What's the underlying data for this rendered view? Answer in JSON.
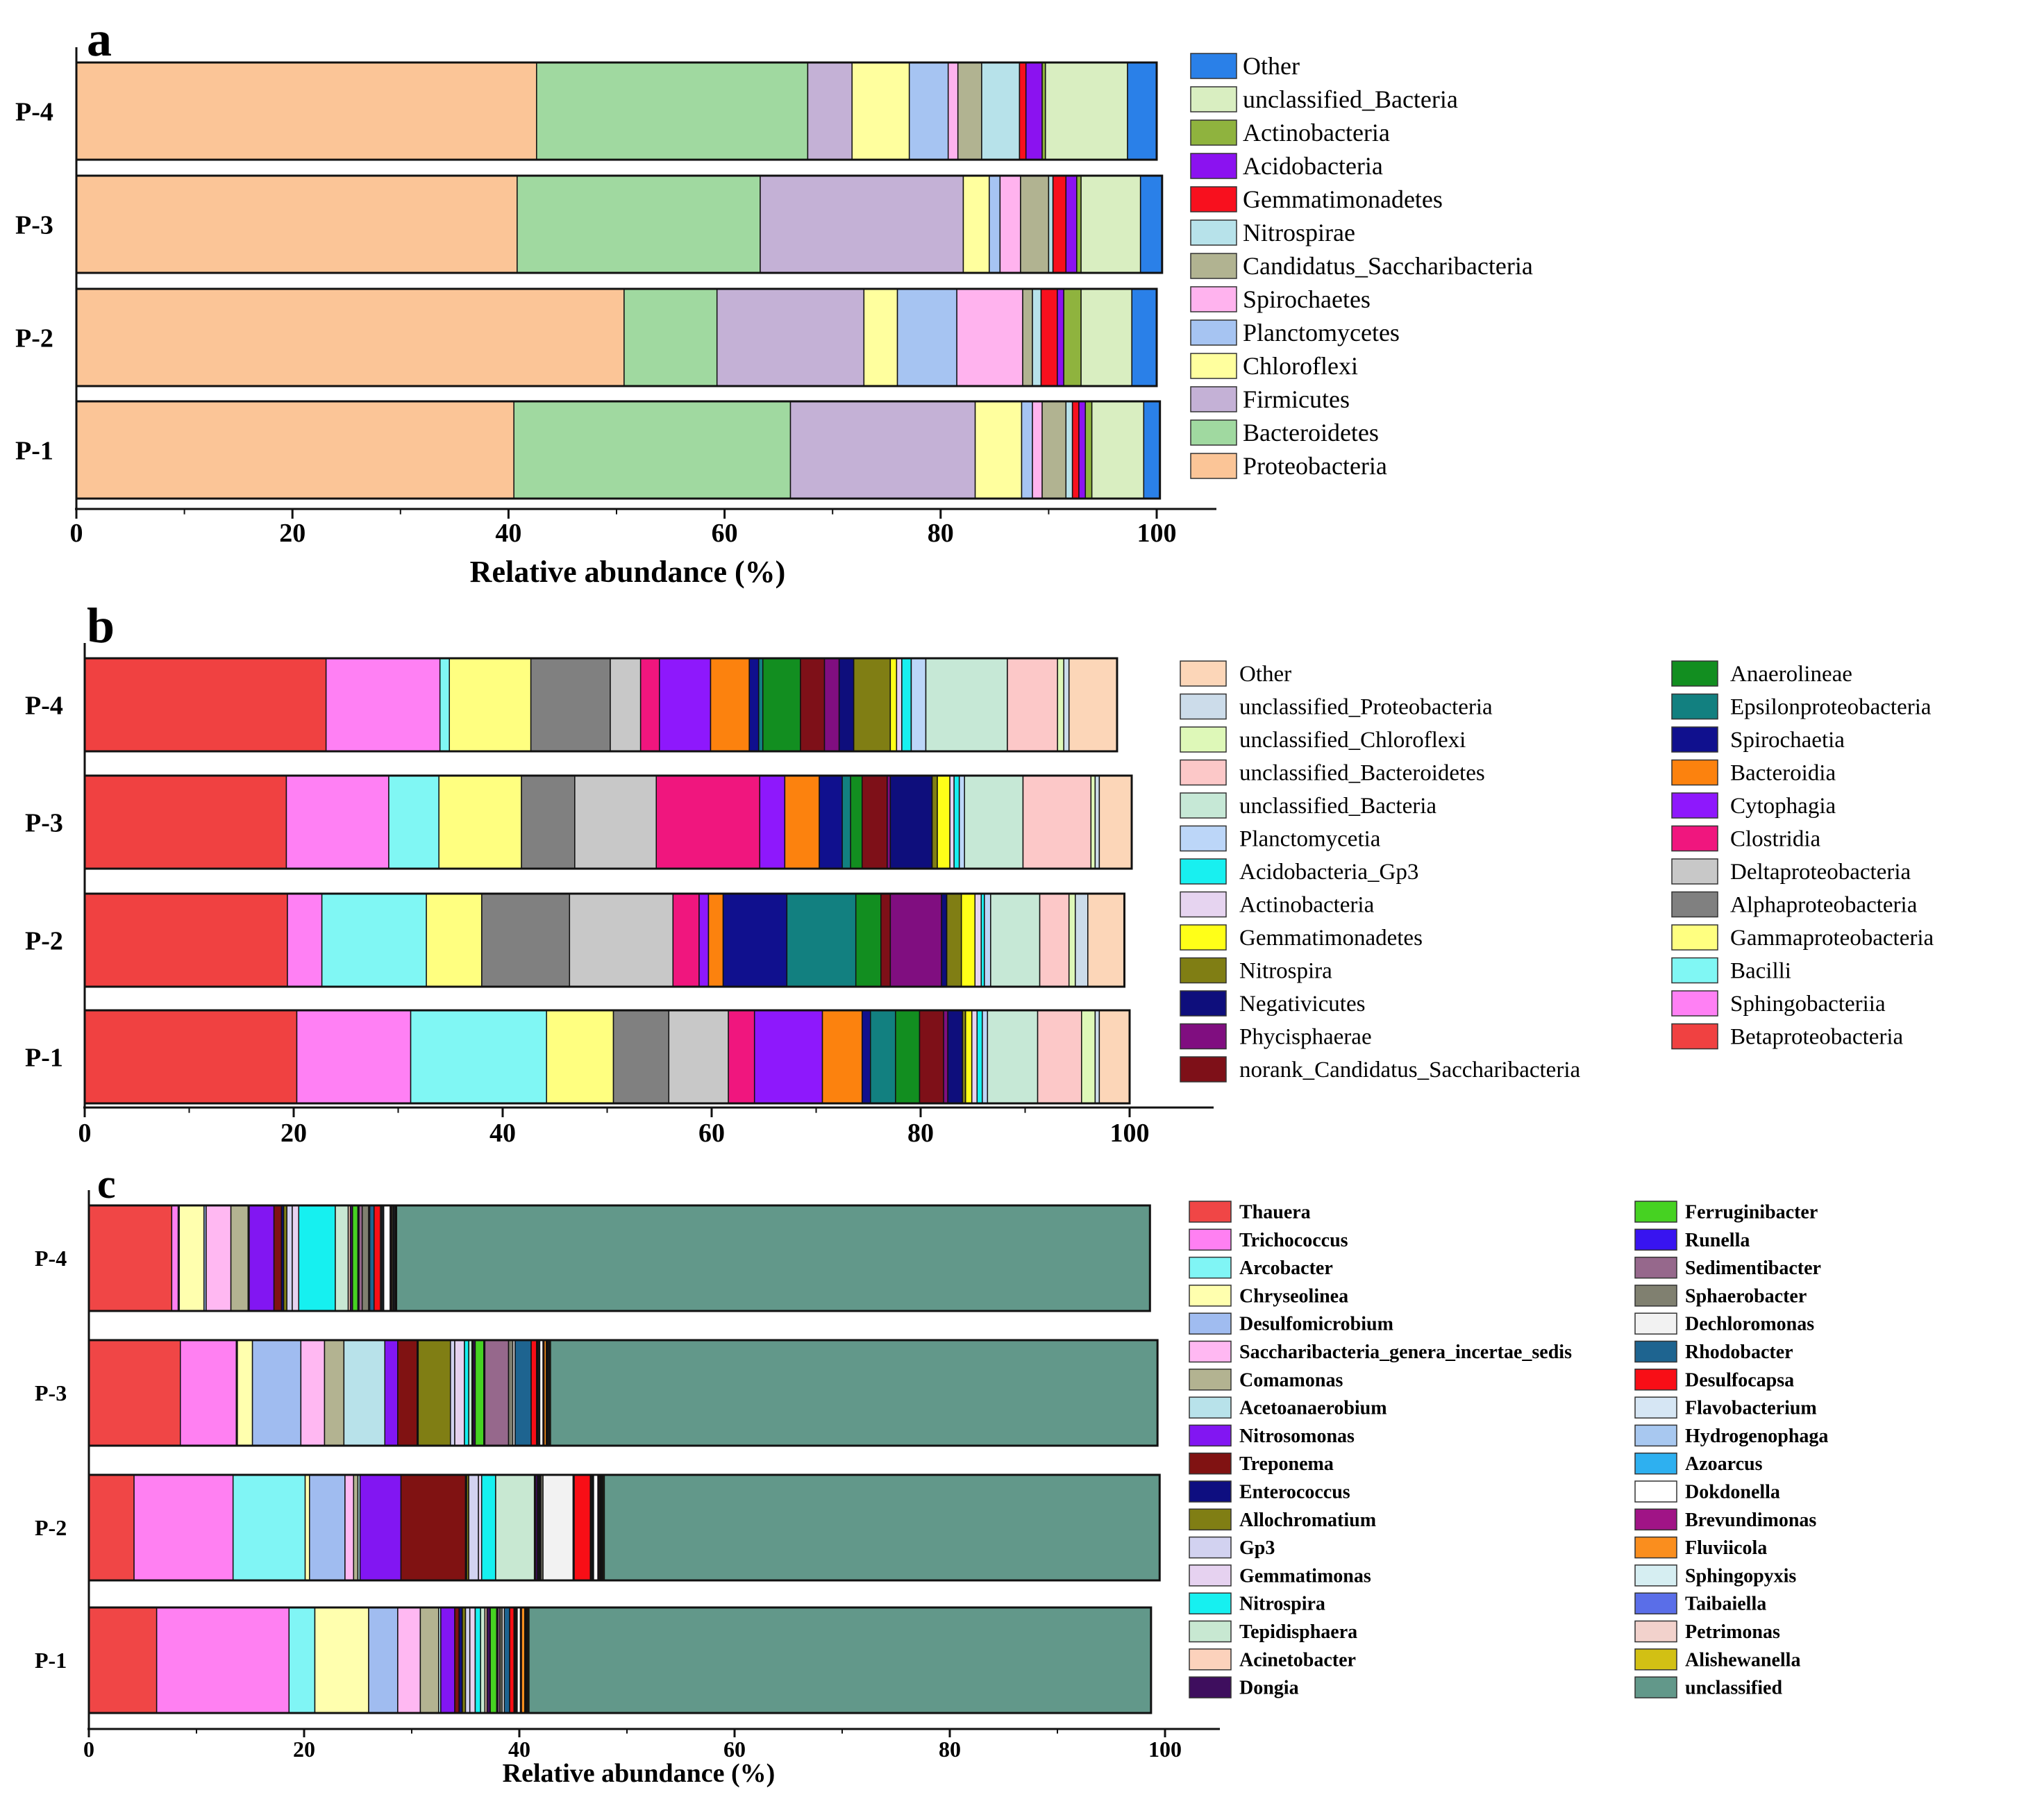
{
  "chart_data": [
    {
      "panel": "a",
      "type": "stacked-horizontal-bar",
      "panel_label": "a",
      "xlabel": "Relative abundance (%)",
      "xlim": [
        0,
        100
      ],
      "xticks": [
        "0",
        "20",
        "40",
        "60",
        "80",
        "100"
      ],
      "categories": [
        "P-4",
        "P-3",
        "P-2",
        "P-1"
      ],
      "series": [
        {
          "name": "Proteobacteria",
          "color": "#FBC597",
          "values": [
            42.6,
            40.8,
            50.7,
            40.5
          ]
        },
        {
          "name": "Bacteroidetes",
          "color": "#A0D9A0",
          "values": [
            25.1,
            22.5,
            8.6,
            25.6
          ]
        },
        {
          "name": "Firmicutes",
          "color": "#C4B1D6",
          "values": [
            4.1,
            18.8,
            13.6,
            17.1
          ]
        },
        {
          "name": "Chloroflexi",
          "color": "#FFFF9E",
          "values": [
            5.3,
            2.4,
            3.1,
            4.3
          ]
        },
        {
          "name": "Planctomycetes",
          "color": "#A6C4F2",
          "values": [
            3.6,
            1.0,
            5.5,
            1.0
          ]
        },
        {
          "name": "Spirochaetes",
          "color": "#FFB3EE",
          "values": [
            0.9,
            1.9,
            6.1,
            0.9
          ]
        },
        {
          "name": "Candidatus_Saccharibacteria",
          "color": "#B1B391",
          "values": [
            2.2,
            2.6,
            0.9,
            2.2
          ]
        },
        {
          "name": "Nitrospirae",
          "color": "#B7E2EA",
          "values": [
            3.5,
            0.4,
            0.8,
            0.6
          ]
        },
        {
          "name": "Gemmatimonadetes",
          "color": "#F8101E",
          "values": [
            0.6,
            1.2,
            1.5,
            0.6
          ]
        },
        {
          "name": "Acidobacteria",
          "color": "#8B12F0",
          "values": [
            1.5,
            1.0,
            0.6,
            0.6
          ]
        },
        {
          "name": "Actinobacteria",
          "color": "#8FB33E",
          "values": [
            0.3,
            0.4,
            1.6,
            0.6
          ]
        },
        {
          "name": "unclassified_Bacteria",
          "color": "#D9EEC1",
          "values": [
            7.6,
            5.5,
            4.7,
            4.8
          ]
        },
        {
          "name": "Other",
          "color": "#2A80E8",
          "values": [
            2.7,
            2.0,
            2.3,
            1.5
          ]
        }
      ]
    },
    {
      "panel": "b",
      "type": "stacked-horizontal-bar",
      "panel_label": "b",
      "xlabel": "",
      "xlim": [
        0,
        100
      ],
      "xticks": [
        "0",
        "20",
        "40",
        "60",
        "80",
        "100"
      ],
      "categories": [
        "P-4",
        "P-3",
        "P-2",
        "P-1"
      ],
      "series": [
        {
          "name": "Betaproteobacteria",
          "color": "#F04141",
          "values": [
            23.1,
            19.3,
            19.4,
            20.3
          ]
        },
        {
          "name": "Sphingobacteriia",
          "color": "#FF80F4",
          "values": [
            10.9,
            9.8,
            3.3,
            10.9
          ]
        },
        {
          "name": "Bacilli",
          "color": "#80F7F4",
          "values": [
            0.9,
            4.8,
            10.0,
            13.0
          ]
        },
        {
          "name": "Gammaproteobacteria",
          "color": "#FFFF80",
          "values": [
            7.8,
            7.9,
            5.3,
            6.4
          ]
        },
        {
          "name": "Alphaproteobacteria",
          "color": "#808080",
          "values": [
            7.6,
            5.1,
            8.4,
            5.3
          ]
        },
        {
          "name": "Deltaproteobacteria",
          "color": "#C8C8C8",
          "values": [
            2.9,
            7.8,
            9.9,
            5.7
          ]
        },
        {
          "name": "Clostridia",
          "color": "#F0167E",
          "values": [
            1.8,
            9.9,
            2.5,
            2.5
          ]
        },
        {
          "name": "Cytophagia",
          "color": "#8E18FC",
          "values": [
            4.9,
            2.4,
            0.9,
            6.5
          ]
        },
        {
          "name": "Bacteroidia",
          "color": "#FC820E",
          "values": [
            3.7,
            3.3,
            1.4,
            3.8
          ]
        },
        {
          "name": "Spirochaetia",
          "color": "#10108E",
          "values": [
            0.9,
            2.2,
            6.1,
            0.8
          ]
        },
        {
          "name": "Epsilonproteobacteria",
          "color": "#128080",
          "values": [
            0.4,
            0.8,
            6.6,
            2.4
          ]
        },
        {
          "name": "Anaerolineae",
          "color": "#128E20",
          "values": [
            3.6,
            1.1,
            2.4,
            2.3
          ]
        },
        {
          "name": "norank_Candidatus_Saccharibacteria",
          "color": "#7E1018",
          "values": [
            2.3,
            2.4,
            0.9,
            2.3
          ]
        },
        {
          "name": "Phycisphaerae",
          "color": "#800E80",
          "values": [
            1.4,
            0.3,
            4.9,
            0.4
          ]
        },
        {
          "name": "Negativicutes",
          "color": "#0E0E7C",
          "values": [
            1.4,
            4.0,
            0.5,
            1.4
          ]
        },
        {
          "name": "Nitrospira",
          "color": "#807E14",
          "values": [
            3.5,
            0.5,
            1.4,
            0.3
          ]
        },
        {
          "name": "Gemmatimonadetes",
          "color": "#FFFF18",
          "values": [
            0.6,
            1.2,
            1.3,
            0.6
          ]
        },
        {
          "name": "Actinobacteria",
          "color": "#E6D4F0",
          "values": [
            0.5,
            0.4,
            0.6,
            0.5
          ]
        },
        {
          "name": "Acidobacteria_Gp3",
          "color": "#18F0F0",
          "values": [
            0.9,
            0.5,
            0.3,
            0.5
          ]
        },
        {
          "name": "Planctomycetia",
          "color": "#BCD6F8",
          "values": [
            1.4,
            0.5,
            0.6,
            0.5
          ]
        },
        {
          "name": "unclassified_Bacteria",
          "color": "#C6E8D6",
          "values": [
            7.8,
            5.6,
            4.7,
            4.8
          ]
        },
        {
          "name": "unclassified_Bacteroidetes",
          "color": "#FCC8C8",
          "values": [
            4.8,
            6.5,
            2.8,
            4.2
          ]
        },
        {
          "name": "unclassified_Chloroflexi",
          "color": "#DEF8B8",
          "values": [
            0.6,
            0.4,
            0.6,
            1.3
          ]
        },
        {
          "name": "unclassified_Proteobacteria",
          "color": "#CCDCEA",
          "values": [
            0.5,
            0.4,
            1.2,
            0.4
          ]
        },
        {
          "name": "Other",
          "color": "#FCD6B8",
          "values": [
            4.6,
            3.1,
            3.5,
            2.9
          ]
        }
      ]
    },
    {
      "panel": "c",
      "type": "stacked-horizontal-bar",
      "panel_label": "c",
      "xlabel": "Relative abundance (%)",
      "xlim": [
        0,
        100
      ],
      "xticks": [
        "0",
        "20",
        "40",
        "60",
        "80",
        "100"
      ],
      "categories": [
        "P-4",
        "P-3",
        "P-2",
        "P-1"
      ],
      "series": [
        {
          "name": "Thauera",
          "color": "#F04646",
          "values": [
            7.7,
            8.5,
            4.2,
            6.3
          ]
        },
        {
          "name": "Trichococcus",
          "color": "#FF80F2",
          "values": [
            0.6,
            5.2,
            9.2,
            12.3
          ]
        },
        {
          "name": "Arcobacter",
          "color": "#80F5F5",
          "values": [
            0.1,
            0.1,
            6.7,
            2.4
          ]
        },
        {
          "name": "Chryseolinea",
          "color": "#FFFFAE",
          "values": [
            2.3,
            1.4,
            0.4,
            5.0
          ]
        },
        {
          "name": "Desulfomicrobium",
          "color": "#A0BCF0",
          "values": [
            0.2,
            4.5,
            3.3,
            2.7
          ]
        },
        {
          "name": "Saccharibacteria_genera_incertae_sedis",
          "color": "#FFB8F2",
          "values": [
            2.3,
            2.2,
            0.8,
            2.1
          ]
        },
        {
          "name": "Comamonas",
          "color": "#B3B391",
          "values": [
            1.6,
            1.8,
            0.4,
            1.7
          ]
        },
        {
          "name": "Acetoanaerobium",
          "color": "#B8E2EA",
          "values": [
            0.1,
            3.8,
            0.2,
            0.2
          ]
        },
        {
          "name": "Nitrosomonas",
          "color": "#8216F2",
          "values": [
            2.3,
            1.2,
            3.8,
            1.3
          ]
        },
        {
          "name": "Treponema",
          "color": "#801212",
          "values": [
            0.7,
            1.8,
            6.0,
            0.4
          ]
        },
        {
          "name": "Enterococcus",
          "color": "#0E0E80",
          "values": [
            0.2,
            0.1,
            0.1,
            0.3
          ]
        },
        {
          "name": "Allochromatium",
          "color": "#807E14",
          "values": [
            0.3,
            3.0,
            0.2,
            0.3
          ]
        },
        {
          "name": "Gp3",
          "color": "#D2D2F0",
          "values": [
            0.5,
            0.4,
            0.9,
            0.4
          ]
        },
        {
          "name": "Gemmatimonas",
          "color": "#E6D2F0",
          "values": [
            0.6,
            0.9,
            0.3,
            0.5
          ]
        },
        {
          "name": "Nitrospira",
          "color": "#16F0F0",
          "values": [
            3.4,
            0.4,
            1.3,
            0.5
          ]
        },
        {
          "name": "Tepidisphaera",
          "color": "#C8E8D2",
          "values": [
            1.2,
            0.3,
            3.6,
            0.4
          ]
        },
        {
          "name": "Acinetobacter",
          "color": "#FCD2BC",
          "values": [
            0.2,
            0.1,
            0.1,
            0.2
          ]
        },
        {
          "name": "Dongia",
          "color": "#3E0E5E",
          "values": [
            0.2,
            0.2,
            0.2,
            0.3
          ]
        },
        {
          "name": "Ferruginibacter",
          "color": "#46D222",
          "values": [
            0.5,
            0.8,
            0.1,
            0.6
          ]
        },
        {
          "name": "Runella",
          "color": "#3814F0",
          "values": [
            0.1,
            0.1,
            0.1,
            0.1
          ]
        },
        {
          "name": "Sedimentibacter",
          "color": "#96688C",
          "values": [
            0.3,
            2.2,
            0.1,
            0.2
          ]
        },
        {
          "name": "Sphaerobacter",
          "color": "#808070",
          "values": [
            0.6,
            0.4,
            0.2,
            0.2
          ]
        },
        {
          "name": "Dechloromonas",
          "color": "#F2F2F2",
          "values": [
            0.1,
            0.2,
            2.8,
            0.2
          ]
        },
        {
          "name": "Rhodobacter",
          "color": "#1E6490",
          "values": [
            0.4,
            1.5,
            0.1,
            0.5
          ]
        },
        {
          "name": "Desulfocapsa",
          "color": "#F80E16",
          "values": [
            0.6,
            0.5,
            1.5,
            0.4
          ]
        },
        {
          "name": "Flavobacterium",
          "color": "#D6E6F4",
          "values": [
            0.1,
            0.1,
            0.1,
            0.1
          ]
        },
        {
          "name": "Hydrogenophaga",
          "color": "#A8C8F0",
          "values": [
            0.1,
            0.1,
            0.1,
            0.1
          ]
        },
        {
          "name": "Azoarcus",
          "color": "#2EB0F0",
          "values": [
            0.1,
            0.1,
            0.1,
            0.1
          ]
        },
        {
          "name": "Dokdonella",
          "color": "#FFFFFF",
          "values": [
            0.6,
            0.3,
            0.4,
            0.3
          ]
        },
        {
          "name": "Brevundimonas",
          "color": "#A01486",
          "values": [
            0.1,
            0.1,
            0.1,
            0.1
          ]
        },
        {
          "name": "Fluviicola",
          "color": "#FA8E1E",
          "values": [
            0.1,
            0.2,
            0.1,
            0.3
          ]
        },
        {
          "name": "Sphingopyxis",
          "color": "#D6EEF2",
          "values": [
            0.1,
            0.1,
            0.1,
            0.1
          ]
        },
        {
          "name": "Taibaiella",
          "color": "#5A6EE8",
          "values": [
            0.1,
            0.1,
            0.1,
            0.1
          ]
        },
        {
          "name": "Petrimonas",
          "color": "#F2D2CC",
          "values": [
            0.1,
            0.1,
            0.1,
            0.1
          ]
        },
        {
          "name": "Alishewanella",
          "color": "#D2C014",
          "values": [
            0.1,
            0.1,
            0.1,
            0.1
          ]
        },
        {
          "name": "unclassified",
          "color": "#62988A",
          "values": [
            70.0,
            56.4,
            51.6,
            57.8
          ]
        }
      ]
    }
  ]
}
